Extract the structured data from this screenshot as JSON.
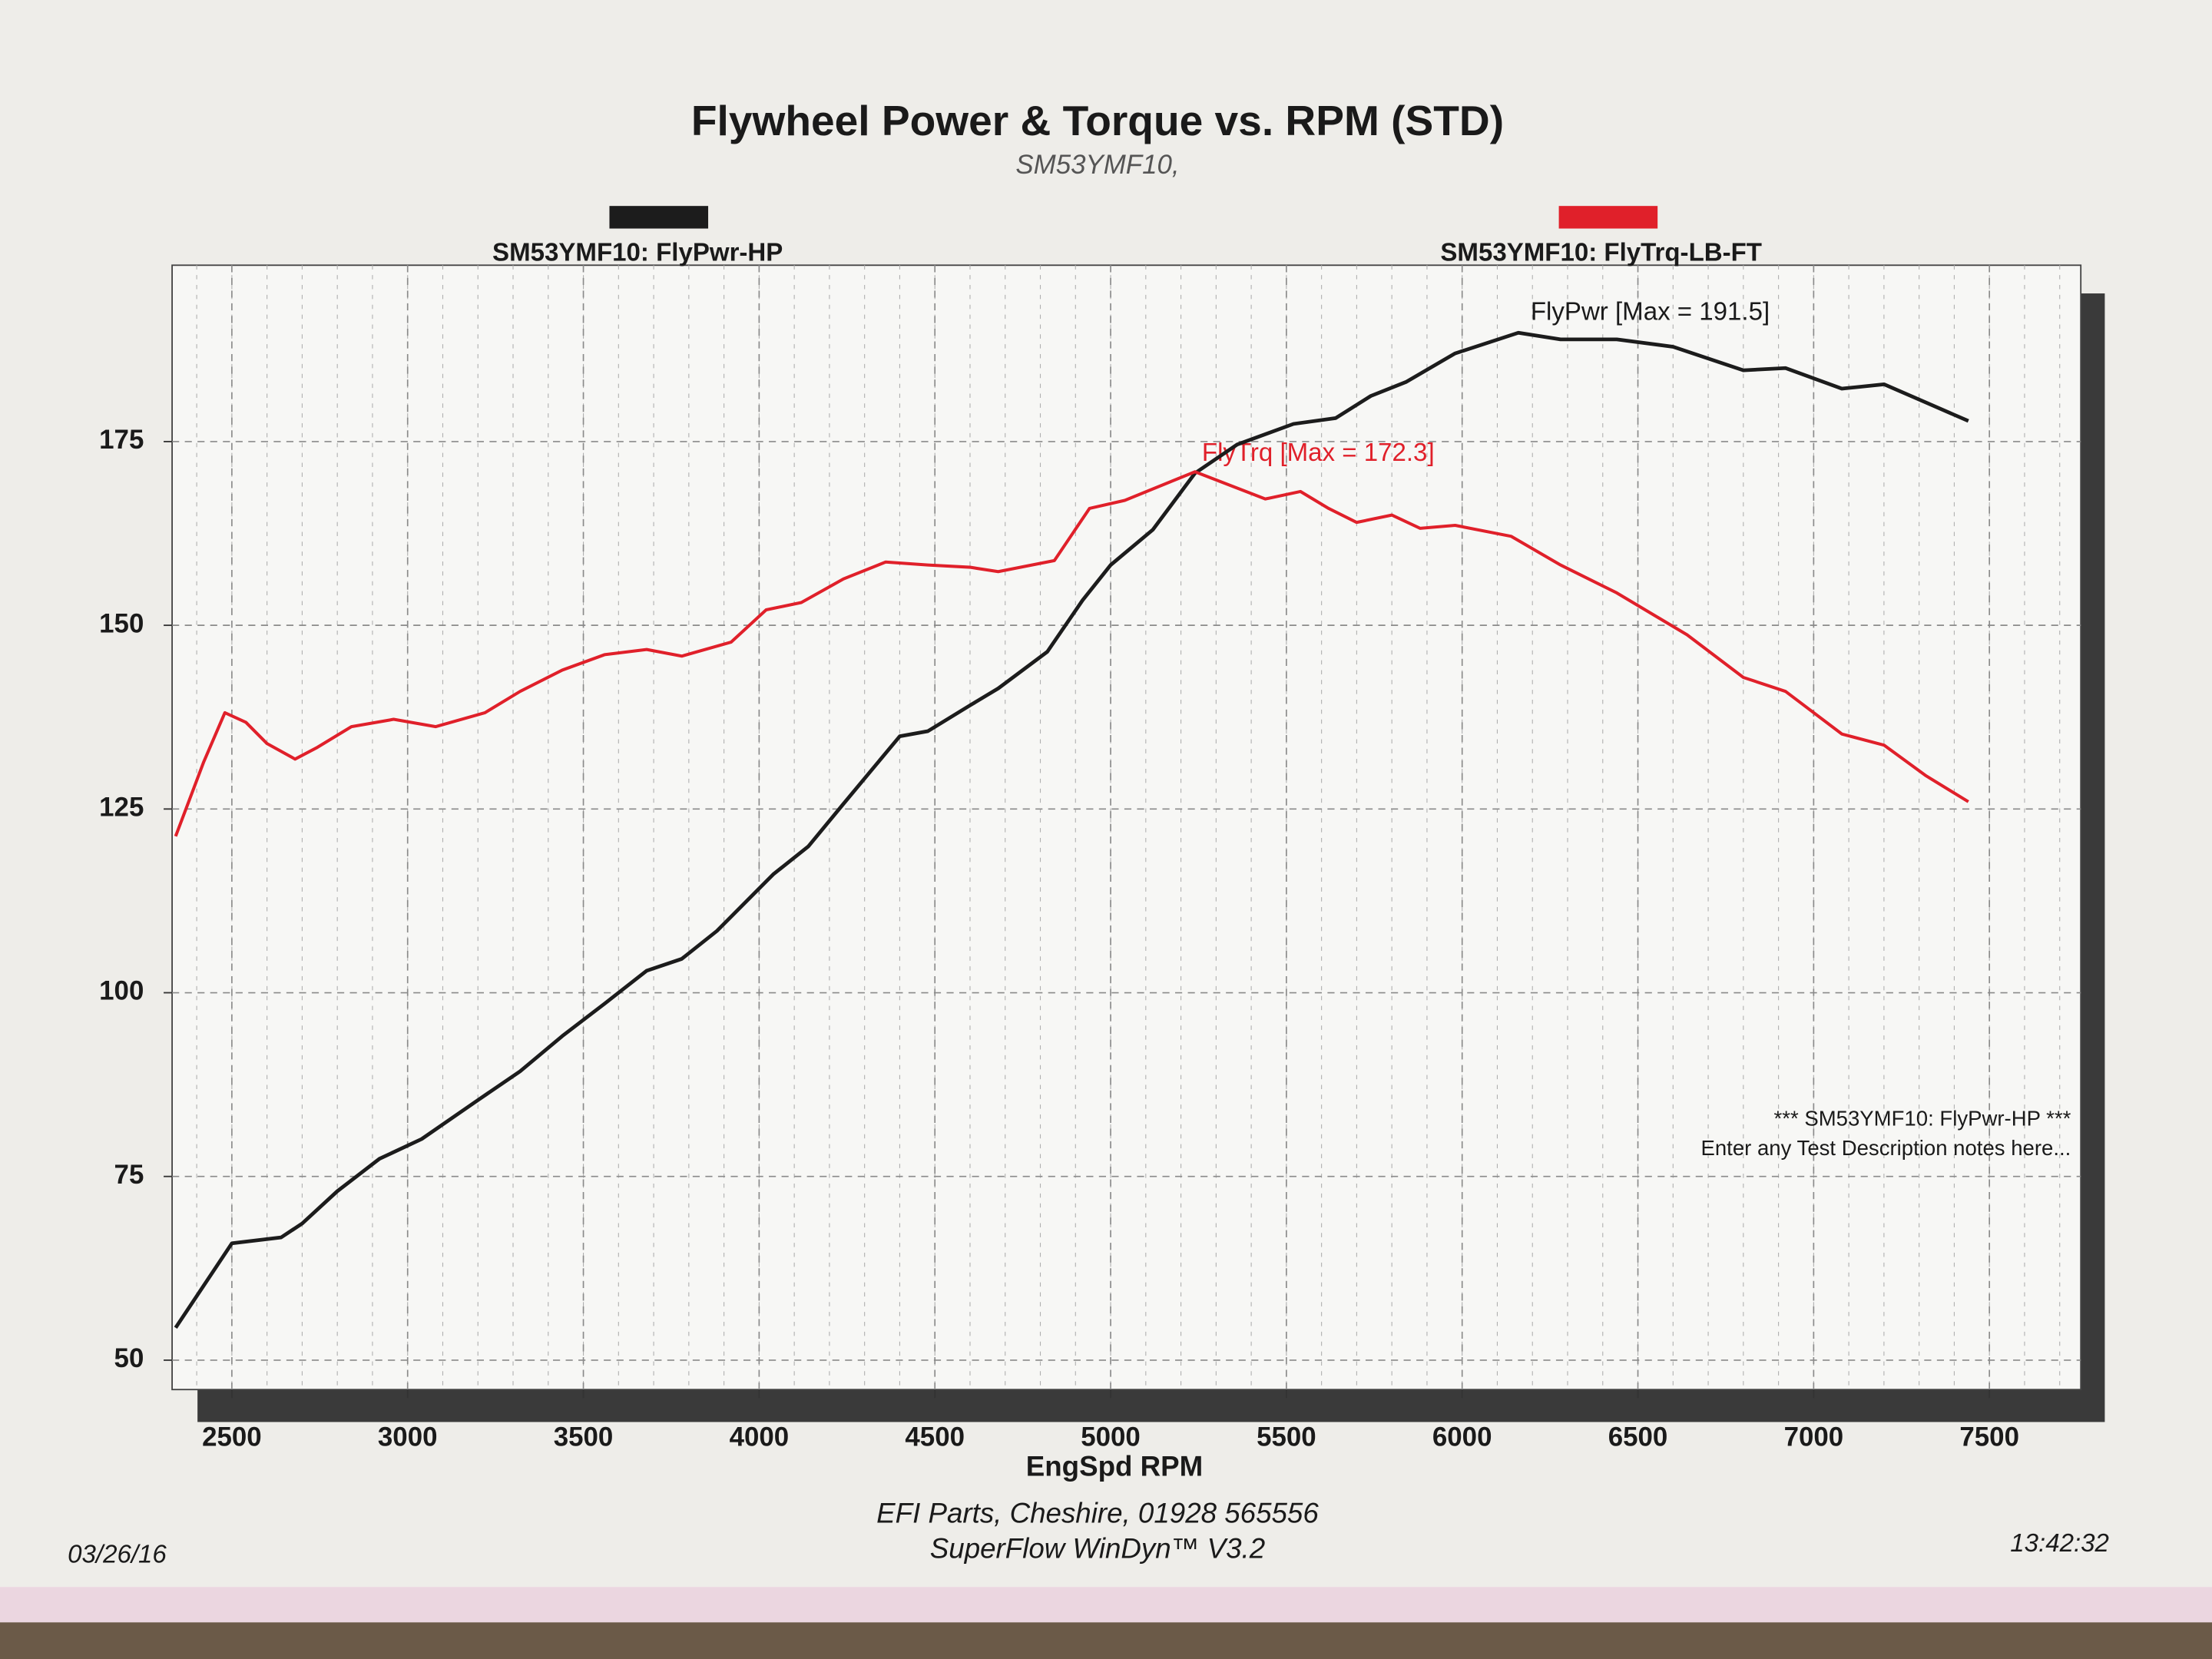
{
  "chart_data": {
    "type": "line",
    "title": "Flywheel Power & Torque vs. RPM (STD)",
    "subtitle": "SM53YMF10,",
    "x_label": "EngSpd RPM",
    "xlim": [
      2330,
      7760
    ],
    "ylim": [
      46,
      199
    ],
    "xticks": [
      2500,
      3000,
      3500,
      4000,
      4500,
      5000,
      5500,
      6000,
      6500,
      7000,
      7500
    ],
    "yticks": [
      50,
      75,
      100,
      125,
      150,
      175
    ],
    "grid": true,
    "series": [
      {
        "name": "SM53YMF10: FlyPwr-HP",
        "color": "#1c1c1c",
        "x": [
          2340,
          2500,
          2640,
          2700,
          2800,
          2920,
          3040,
          3200,
          3320,
          3440,
          3560,
          3680,
          3780,
          3880,
          4040,
          4140,
          4240,
          4400,
          4480,
          4600,
          4680,
          4820,
          4920,
          5000,
          5120,
          5240,
          5360,
          5520,
          5640,
          5740,
          5840,
          5980,
          6160,
          6280,
          6440,
          6600,
          6800,
          6920,
          7080,
          7200,
          7320,
          7440
        ],
        "values": [
          54.4,
          65.9,
          66.7,
          68.6,
          73,
          77.4,
          80.1,
          85.4,
          89.3,
          94.1,
          98.5,
          103,
          104.6,
          108.4,
          116.1,
          119.9,
          125.7,
          134.9,
          135.6,
          139.1,
          141.4,
          146.4,
          153.4,
          158.2,
          163,
          170.7,
          174.6,
          177.4,
          178.2,
          181.2,
          183.1,
          187,
          189.8,
          188.9,
          188.9,
          187.9,
          184.7,
          185,
          182.2,
          182.8,
          180.3,
          177.8
        ]
      },
      {
        "name": "SM53YMF10: FlyTrq-LB-FT",
        "color": "#e0202a",
        "x": [
          2340,
          2420,
          2480,
          2540,
          2600,
          2680,
          2740,
          2840,
          2960,
          3080,
          3220,
          3320,
          3440,
          3560,
          3680,
          3780,
          3920,
          4020,
          4120,
          4240,
          4360,
          4480,
          4600,
          4680,
          4840,
          4940,
          5040,
          5240,
          5440,
          5540,
          5620,
          5700,
          5800,
          5880,
          5980,
          6140,
          6280,
          6440,
          6640,
          6800,
          6920,
          7080,
          7200,
          7320,
          7440
        ],
        "values": [
          121.3,
          131.4,
          138.1,
          136.8,
          133.9,
          131.8,
          133.3,
          136.2,
          137.2,
          136.2,
          138.1,
          141,
          143.9,
          146,
          146.7,
          145.8,
          147.7,
          152.1,
          153.1,
          156.3,
          158.6,
          158.2,
          157.9,
          157.3,
          158.8,
          165.9,
          167,
          170.9,
          167.2,
          168.2,
          165.9,
          164,
          165,
          163.2,
          163.6,
          162.1,
          158.2,
          154.4,
          148.7,
          142.9,
          141,
          135.2,
          133.7,
          129.5,
          126
        ]
      }
    ],
    "annotations": [
      "FlyPwr [Max = 191.5]",
      "FlyTrq [Max = 172.3]"
    ],
    "notes": [
      "*** SM53YMF10: FlyPwr-HP ***",
      "Enter any Test Description notes here..."
    ],
    "footer": [
      "EFI Parts, Cheshire, 01928 565556",
      "SuperFlow WinDyn™ V3.2"
    ],
    "date": "03/26/16",
    "time": "13:42:32"
  }
}
